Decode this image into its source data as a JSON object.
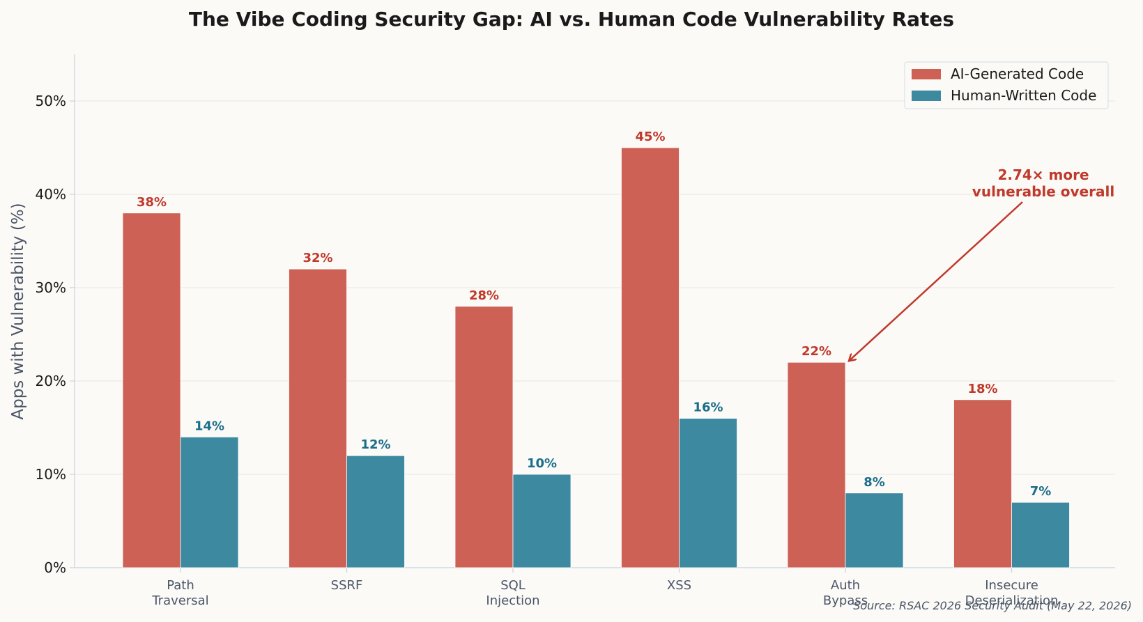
{
  "chart_data": {
    "type": "bar",
    "title": "The Vibe Coding Security Gap: AI vs. Human Code Vulnerability Rates",
    "ylabel": "Apps with Vulnerability (%)",
    "xlabel": "",
    "ylim": [
      0,
      55
    ],
    "yticks": [
      "0%",
      "10%",
      "20%",
      "30%",
      "40%",
      "50%"
    ],
    "categories": [
      [
        "Path",
        "Traversal"
      ],
      [
        "SSRF"
      ],
      [
        "SQL",
        "Injection"
      ],
      [
        "XSS"
      ],
      [
        "Auth",
        "Bypass"
      ],
      [
        "Insecure",
        "Deserialization"
      ]
    ],
    "series": [
      {
        "name": "AI-Generated Code",
        "color": "#cd6155",
        "label_color": "#c0392b",
        "values": [
          38,
          32,
          28,
          45,
          22,
          18
        ],
        "labels": [
          "38%",
          "32%",
          "28%",
          "45%",
          "22%",
          "18%"
        ]
      },
      {
        "name": "Human-Written Code",
        "color": "#3d89a0",
        "label_color": "#1b6e8a",
        "values": [
          14,
          12,
          10,
          16,
          8,
          7
        ],
        "labels": [
          "14%",
          "12%",
          "10%",
          "16%",
          "8%",
          "7%"
        ]
      }
    ],
    "grid": true,
    "legend_position": "top-right",
    "annotation": {
      "lines": [
        "2.74× more",
        "vulnerable overall"
      ],
      "points_to_category": "Auth Bypass",
      "points_to_value": 22
    },
    "source": "Source: RSAC 2026 Security Audit (May 22, 2026)"
  }
}
